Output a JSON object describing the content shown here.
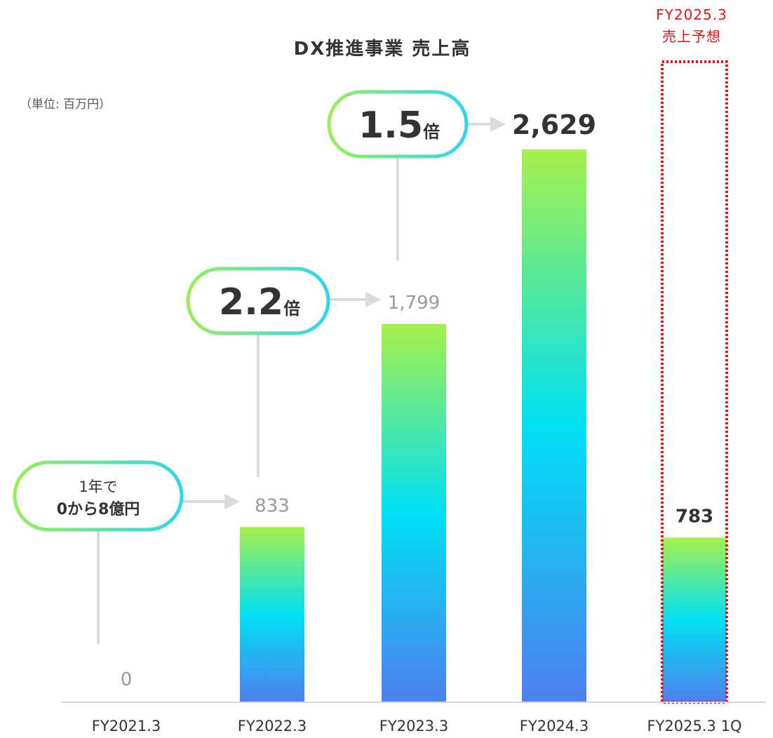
{
  "chart_data": {
    "type": "bar",
    "title": "DX推進事業 売上高",
    "unit_label": "（単位: 百万円）",
    "categories": [
      "FY2021.3",
      "FY2022.3",
      "FY2023.3",
      "FY2024.3",
      "FY2025.3 1Q"
    ],
    "values": [
      0,
      833,
      1799,
      2629,
      783
    ],
    "value_labels": [
      "0",
      "833",
      "1,799",
      "2,629",
      "783"
    ],
    "emphasized_labels": [
      false,
      false,
      false,
      true,
      true
    ],
    "ylim": [
      0,
      2629
    ],
    "grid": false,
    "forecast_box": {
      "category": "FY2025.3 1Q",
      "caption_line1": "FY2025.3",
      "caption_line2": "売上予想",
      "color": "#ee1111"
    },
    "callouts": [
      {
        "from": "FY2021.3",
        "to": "FY2022.3",
        "line1": "1年で",
        "line2": "0から8億円"
      },
      {
        "from": "FY2022.3",
        "to": "FY2023.3",
        "number": "2.2",
        "suffix": "倍"
      },
      {
        "from": "FY2023.3",
        "to": "FY2024.3",
        "number": "1.5",
        "suffix": "倍"
      }
    ],
    "colors": {
      "bar_top": "#a6f04c",
      "bar_mid": "#00e0f4",
      "bar_bottom": "#4f7fee",
      "callout_left": "#9aee5a",
      "callout_right": "#2dd6f0",
      "connector": "#d9dbe0",
      "muted_text": "#999999",
      "strong_text": "#333333"
    }
  }
}
